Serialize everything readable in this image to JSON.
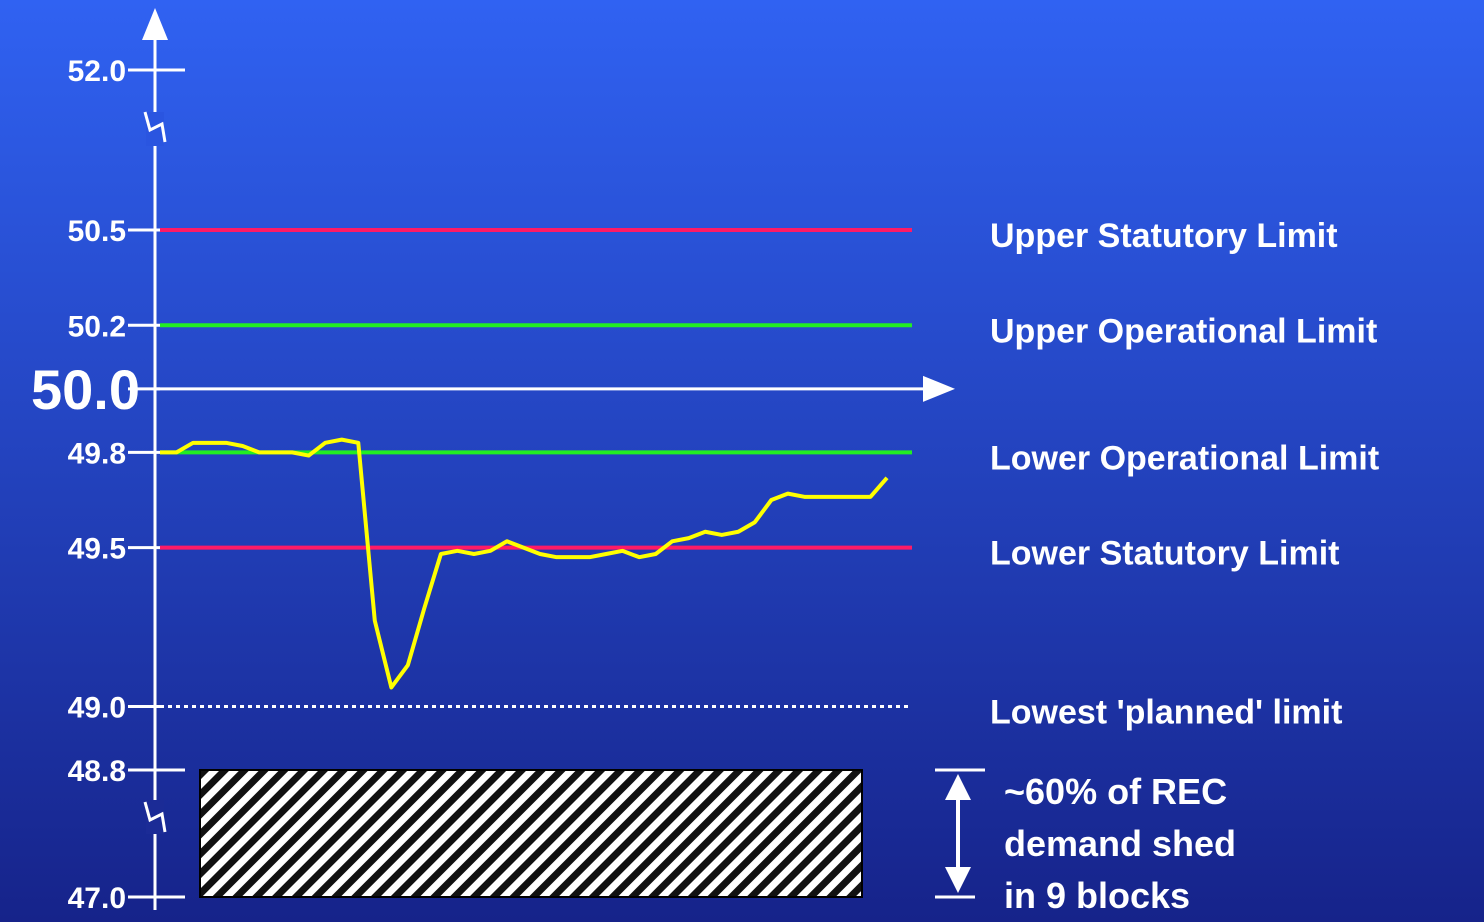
{
  "chart_data": {
    "type": "line",
    "ylim": [
      48.8,
      50.5
    ],
    "yticks": [
      {
        "value": 52,
        "label": "52.0"
      },
      50.5,
      50.2,
      {
        "value": 50,
        "label": "50.0"
      },
      49.8,
      49.5,
      {
        "value": 49,
        "label": "49.0"
      },
      48.8,
      {
        "value": 47,
        "label": "47.0"
      }
    ],
    "x_axis_at": 50,
    "reference_lines": [
      {
        "label": "Upper Statutory Limit",
        "value": 50.5,
        "color": "#ff1a66",
        "style": "solid"
      },
      {
        "label": "Upper Operational Limit",
        "value": 50.2,
        "color": "#22ee22",
        "style": "solid"
      },
      {
        "label": "Lower Operational Limit",
        "value": 49.8,
        "color": "#22ee22",
        "style": "solid"
      },
      {
        "label": "Lower Statutory Limit",
        "value": 49.5,
        "color": "#ff1a66",
        "style": "solid"
      },
      {
        "label": "Lowest 'planned' limit",
        "value": 49,
        "color": "#ffffff",
        "style": "dotted"
      }
    ],
    "series": [
      {
        "color": "#ffff00",
        "values": [
          49.8,
          49.8,
          49.83,
          49.83,
          49.83,
          49.82,
          49.8,
          49.8,
          49.8,
          49.79,
          49.83,
          49.84,
          49.83,
          49.27,
          49.06,
          49.13,
          49.31,
          49.48,
          49.49,
          49.48,
          49.49,
          49.52,
          49.5,
          49.48,
          49.47,
          49.47,
          49.47,
          49.48,
          49.49,
          49.47,
          49.48,
          49.52,
          49.53,
          49.55,
          49.54,
          49.55,
          49.58,
          49.65,
          49.67,
          49.66,
          49.66,
          49.66,
          49.66,
          49.66,
          49.72
        ]
      }
    ],
    "shaded_region": {
      "from": 48.8,
      "to": 47,
      "label_lines": [
        "~60% of REC",
        "demand shed",
        "in 9 blocks"
      ]
    }
  }
}
